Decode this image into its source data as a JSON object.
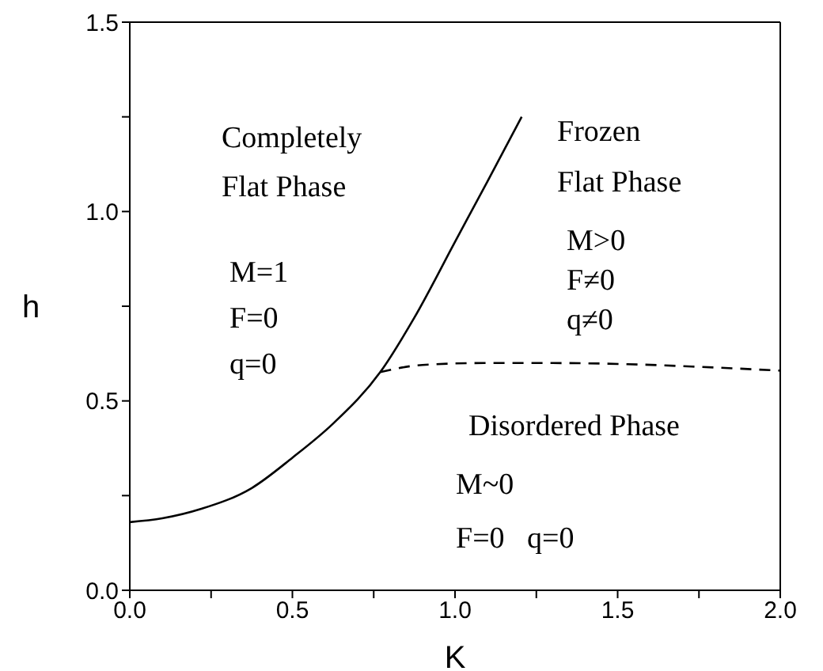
{
  "chart_data": {
    "type": "line",
    "xlabel": "K",
    "ylabel": "h",
    "xlim": [
      0,
      2
    ],
    "ylim": [
      0,
      1.5
    ],
    "xticks": [
      {
        "value": 0,
        "label": "0.0"
      },
      {
        "value": 0.25,
        "label": null
      },
      {
        "value": 0.5,
        "label": "0.5"
      },
      {
        "value": 0.75,
        "label": null
      },
      {
        "value": 1,
        "label": "1.0"
      },
      {
        "value": 1.25,
        "label": null
      },
      {
        "value": 1.5,
        "label": "1.5"
      },
      {
        "value": 1.75,
        "label": null
      },
      {
        "value": 2,
        "label": "2.0"
      }
    ],
    "yticks": [
      {
        "value": 0,
        "label": "0.0"
      },
      {
        "value": 0.25,
        "label": null
      },
      {
        "value": 0.5,
        "label": "0.5"
      },
      {
        "value": 0.75,
        "label": null
      },
      {
        "value": 1,
        "label": "1.0"
      },
      {
        "value": 1.25,
        "label": null
      },
      {
        "value": 1.5,
        "label": "1.5"
      }
    ],
    "marker": "none",
    "series": [
      {
        "color": "#000000",
        "line_style": "solid",
        "x": [
          0,
          0.1,
          0.22,
          0.375,
          0.5,
          0.625,
          0.77,
          0.875,
          1.0,
          1.1,
          1.205
        ],
        "values": [
          0.18,
          0.19,
          0.215,
          0.27,
          0.35,
          0.44,
          0.576,
          0.72,
          0.92,
          1.08,
          1.25
        ]
      },
      {
        "color": "#000000",
        "line_style": "dashed",
        "x": [
          0.77,
          0.9,
          1.09,
          1.3,
          1.53,
          1.75,
          2.0
        ],
        "values": [
          0.576,
          0.595,
          0.6,
          0.6,
          0.597,
          0.59,
          0.58
        ]
      }
    ],
    "annotations": [
      "Completely\nFlat Phase",
      "M=1\nF=0\nq=0",
      "Frozen\nFlat Phase",
      "M>0\nF≠0\nq≠0",
      "Disordered Phase",
      "M~0",
      "F=0   q=0"
    ]
  }
}
